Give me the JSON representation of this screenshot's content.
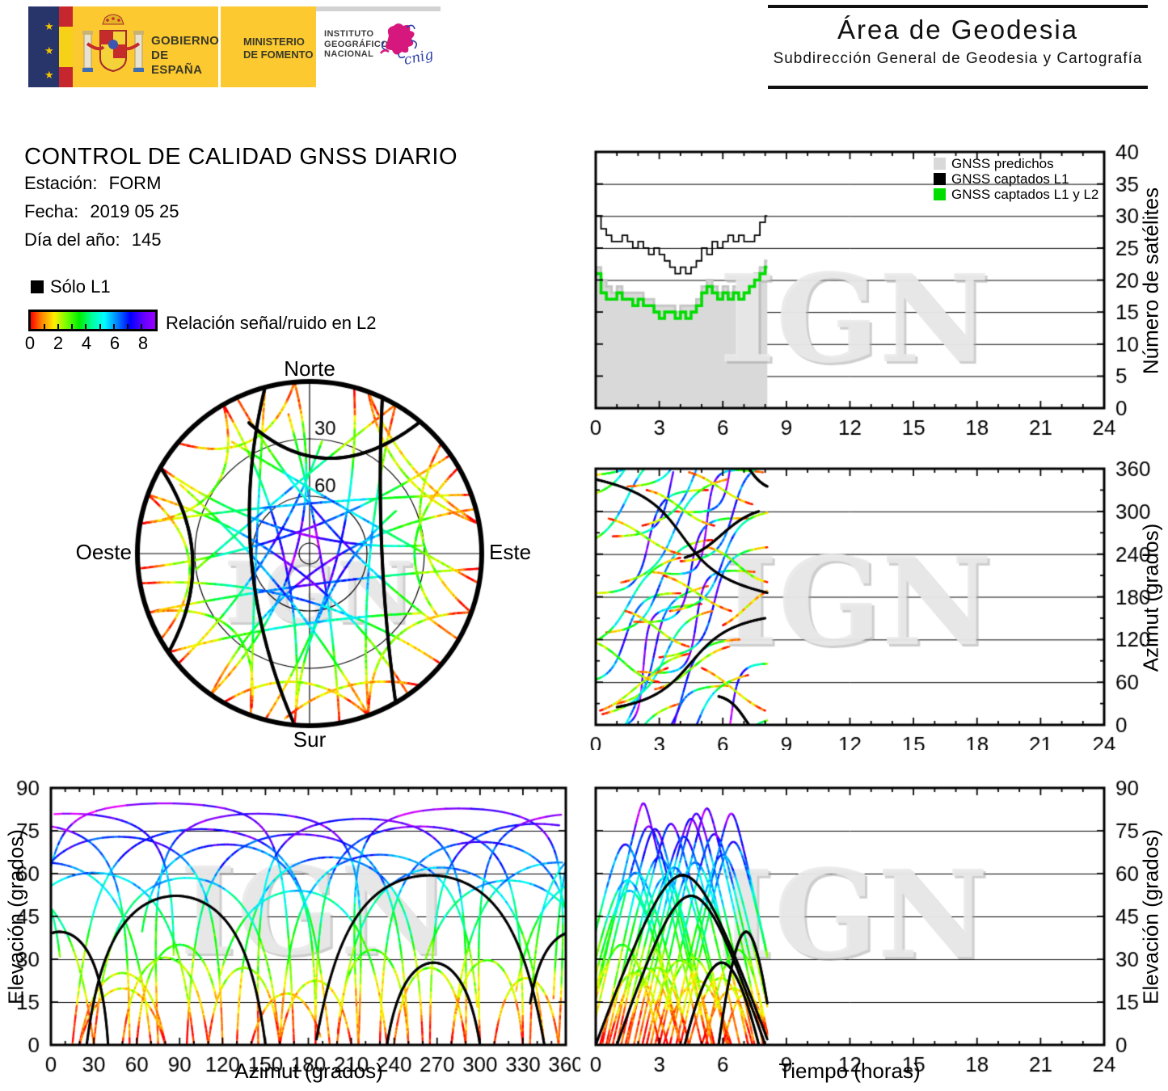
{
  "header": {
    "gobierno_line1": "GOBIERNO",
    "gobierno_line2": "DE ESPAÑA",
    "ministerio_line1": "MINISTERIO",
    "ministerio_line2": "DE FOMENTO",
    "instituto_line1": "INSTITUTO",
    "instituto_line2": "GEOGRÁFICO",
    "instituto_line3": "NACIONAL",
    "cnig_script": "cnig",
    "area_title": "Área de Geodesia",
    "area_subtitle": "Subdirección General de Geodesia y Cartografía"
  },
  "info": {
    "title": "CONTROL DE CALIDAD GNSS DIARIO",
    "rows": [
      {
        "label": "Estación:",
        "value": "FORM"
      },
      {
        "label": "Fecha:",
        "value": "2019 05 25"
      },
      {
        "label": "Día del año:",
        "value": "145"
      }
    ]
  },
  "legend_l1": "Sólo L1",
  "colorbar": {
    "ticks": [
      "0",
      "2",
      "4",
      "6",
      "8"
    ],
    "label": "Relación señal/ruido en L2"
  },
  "watermark": "IGN",
  "chart_data": {
    "time_window_hours": [
      0,
      8.1
    ],
    "snr_colormap": {
      "min": 0,
      "max": 9,
      "hue_deg": [
        0,
        300
      ]
    },
    "panels": {
      "sat_count": {
        "type": "step-line",
        "y_title": "Número de satélites",
        "x_range": [
          0,
          24
        ],
        "y_range": [
          0,
          40
        ],
        "x_ticks": [
          0,
          3,
          6,
          9,
          12,
          15,
          18,
          21,
          24
        ],
        "x_minor": 1,
        "y_ticks": [
          0,
          5,
          10,
          15,
          20,
          25,
          30,
          35,
          40
        ],
        "grid_y": [
          5,
          10,
          15,
          20,
          25,
          30,
          35
        ],
        "step_hours": 0.25,
        "legend": [
          {
            "label": "GNSS predichos",
            "color": "#d9d9d9"
          },
          {
            "label": "GNSS captados L1",
            "color": "#000000"
          },
          {
            "label": "GNSS captados L1 y L2",
            "color": "#00dd00"
          }
        ],
        "series": {
          "predichos": [
            22,
            20,
            19,
            18,
            19,
            18,
            18,
            18,
            18,
            17,
            17,
            16,
            16,
            16,
            16,
            15,
            16,
            16,
            16,
            17,
            19,
            20,
            19,
            18,
            19,
            18,
            19,
            19,
            19,
            20,
            21,
            22,
            23
          ],
          "captados_l1": [
            30,
            28,
            27,
            26,
            26,
            27,
            26,
            25,
            26,
            25,
            24,
            25,
            24,
            23,
            22,
            21,
            22,
            21,
            22,
            23,
            25,
            24,
            26,
            25,
            26,
            27,
            26,
            27,
            26,
            26,
            27,
            29,
            30
          ],
          "captados_l1_l2": [
            21,
            18,
            17,
            17,
            18,
            17,
            17,
            16,
            17,
            16,
            16,
            15,
            14,
            15,
            15,
            14,
            15,
            14,
            15,
            16,
            18,
            19,
            18,
            17,
            18,
            17,
            18,
            17,
            18,
            19,
            20,
            21,
            22
          ]
        }
      },
      "azimuth_time": {
        "type": "scatter",
        "y_title": "Azimut (grados)",
        "x_range": [
          0,
          24
        ],
        "y_range": [
          0,
          360
        ],
        "x_ticks": [
          0,
          3,
          6,
          9,
          12,
          15,
          18,
          21,
          24
        ],
        "x_minor": 1,
        "y_ticks": [
          0,
          60,
          120,
          180,
          240,
          300,
          360
        ],
        "y_minor": 30,
        "grid_y": [
          60,
          120,
          180,
          240,
          300
        ]
      },
      "elevation_azimuth": {
        "type": "scatter",
        "x_title": "Azimut (grados)",
        "y_title": "Elevación (grados)",
        "x_range": [
          0,
          360
        ],
        "y_range": [
          0,
          90
        ],
        "x_ticks": [
          0,
          30,
          60,
          90,
          120,
          150,
          180,
          210,
          240,
          270,
          300,
          330,
          360
        ],
        "x_minor": 10,
        "y_ticks": [
          0,
          15,
          30,
          45,
          60,
          75,
          90
        ],
        "grid_y": [
          15,
          30,
          45,
          60,
          75
        ]
      },
      "elevation_time": {
        "type": "scatter",
        "x_title": "Tiempo (horas)",
        "y_title": "Elevación (grados)",
        "x_range": [
          0,
          24
        ],
        "y_range": [
          0,
          90
        ],
        "x_ticks": [
          0,
          3,
          6,
          9,
          12,
          15,
          18,
          21,
          24
        ],
        "x_minor": 1,
        "y_ticks": [
          0,
          15,
          30,
          45,
          60,
          75,
          90
        ],
        "grid_y": [
          15,
          30,
          45,
          60,
          75
        ]
      },
      "skyplot": {
        "type": "polar",
        "rings": [
          {
            "label": "30",
            "elev": 30
          },
          {
            "label": "60",
            "elev": 60
          }
        ],
        "labels": {
          "n": "Norte",
          "s": "Sur",
          "e": "Este",
          "w": "Oeste"
        }
      }
    },
    "satellite_format": "[entry_azimuth_deg, exit_azimuth_deg, min_radial_fraction, rise_hour, duration_hours, l1_only]",
    "satellites": [
      [
        350,
        170,
        0.06,
        -0.5,
        5.5,
        0
      ],
      [
        15,
        195,
        0.16,
        0.3,
        5.0,
        0
      ],
      [
        60,
        185,
        0.22,
        -1.2,
        5.2,
        0
      ],
      [
        75,
        215,
        0.1,
        2.0,
        5.5,
        0
      ],
      [
        95,
        250,
        0.18,
        3.0,
        5.2,
        0
      ],
      [
        130,
        260,
        0.27,
        0.5,
        5.0,
        0
      ],
      [
        145,
        290,
        0.12,
        1.8,
        5.4,
        0
      ],
      [
        185,
        330,
        0.15,
        -0.3,
        5.6,
        0
      ],
      [
        215,
        355,
        0.08,
        2.6,
        5.3,
        0
      ],
      [
        265,
        55,
        0.14,
        0.8,
        5.5,
        0
      ],
      [
        300,
        85,
        0.1,
        3.8,
        5.2,
        0
      ],
      [
        30,
        160,
        0.35,
        1.0,
        4.5,
        0
      ],
      [
        110,
        235,
        0.4,
        -0.8,
        4.8,
        0
      ],
      [
        160,
        300,
        0.26,
        3.5,
        5.0,
        0
      ],
      [
        200,
        345,
        0.31,
        1.2,
        5.0,
        0
      ],
      [
        230,
        10,
        0.21,
        4.0,
        5.0,
        0
      ],
      [
        250,
        30,
        0.36,
        -1.0,
        5.0,
        0
      ],
      [
        280,
        70,
        0.29,
        2.2,
        5.0,
        0
      ],
      [
        320,
        100,
        0.33,
        -0.6,
        5.0,
        0
      ],
      [
        335,
        120,
        0.19,
        1.5,
        5.3,
        0
      ],
      [
        20,
        80,
        0.72,
        0.2,
        3.2,
        0
      ],
      [
        50,
        110,
        0.66,
        2.8,
        3.5,
        0
      ],
      [
        80,
        20,
        0.78,
        5.0,
        3.0,
        0
      ],
      [
        120,
        60,
        0.61,
        -0.5,
        3.5,
        0
      ],
      [
        160,
        110,
        0.7,
        1.4,
        3.0,
        0
      ],
      [
        210,
        160,
        0.75,
        3.2,
        3.2,
        0
      ],
      [
        250,
        200,
        0.63,
        5.2,
        3.0,
        0
      ],
      [
        290,
        240,
        0.7,
        0.6,
        3.4,
        0
      ],
      [
        330,
        280,
        0.67,
        2.4,
        3.2,
        0
      ],
      [
        355,
        310,
        0.74,
        4.4,
        3.0,
        0
      ],
      [
        140,
        190,
        0.8,
        6.0,
        2.2,
        0
      ],
      [
        345,
        185,
        0.34,
        0.0,
        8.2,
        1
      ],
      [
        25,
        150,
        0.42,
        1.0,
        7.0,
        1
      ],
      [
        235,
        300,
        0.68,
        4.2,
        3.5,
        1
      ],
      [
        40,
        332,
        0.56,
        5.8,
        2.6,
        1
      ]
    ]
  }
}
